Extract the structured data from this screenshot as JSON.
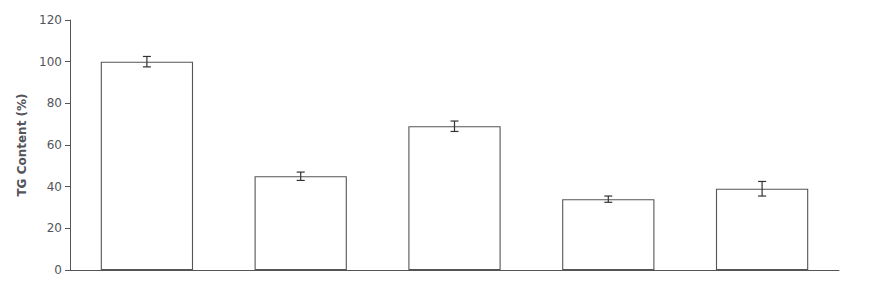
{
  "chart_data": {
    "type": "bar",
    "ylabel": "TG Content (%)",
    "categories": [
      null,
      null,
      null,
      null,
      null
    ],
    "values": [
      100,
      45,
      69,
      34,
      39
    ],
    "errors": [
      2.5,
      2.0,
      2.5,
      1.5,
      3.5
    ],
    "color": "white",
    "ylim": [
      0,
      120
    ],
    "yticks": [
      0,
      20,
      40,
      60,
      80,
      100,
      120
    ],
    "grid": false,
    "tick_labels": "y"
  }
}
